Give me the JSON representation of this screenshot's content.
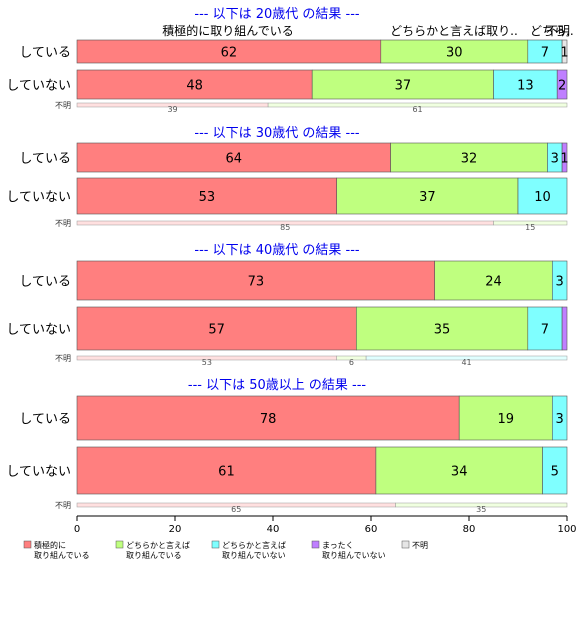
{
  "chart_data": {
    "type": "bar",
    "orientation": "horizontal",
    "stacked": true,
    "xlim": [
      0,
      100
    ],
    "x_ticks": [
      "0",
      "20",
      "40",
      "60",
      "80",
      "100"
    ],
    "category_labels": [
      "積極的に取り組んでいる",
      "どちらかと言えば取り..",
      "どちら..",
      "不明"
    ],
    "series": [
      {
        "name": "積極的に\n取り組んでいる",
        "color": "#ff7f7f"
      },
      {
        "name": "どちらかと言えば\n取り組んでいる",
        "color": "#bfff7f"
      },
      {
        "name": "どちらかと言えば\n取り組んでいない",
        "color": "#7fffff"
      },
      {
        "name": "まったく\n取り組んでいない",
        "color": "#bf7fff"
      },
      {
        "name": "不明",
        "color": "#e6e6e6"
      }
    ],
    "panels": [
      {
        "title": "--- 以下は 20歳代 の結果 ---",
        "rows": [
          {
            "label": "している",
            "values": [
              62,
              30,
              7,
              0,
              1
            ],
            "labels": [
              "62",
              "30",
              "7",
              "",
              "1"
            ]
          },
          {
            "label": "していない",
            "values": [
              48,
              37,
              13,
              2,
              0
            ],
            "labels": [
              "48",
              "37",
              "13",
              "2",
              ""
            ]
          }
        ],
        "unknown": {
          "label": "不明",
          "values": [
            39,
            61
          ],
          "labels": [
            "39",
            "61"
          ]
        }
      },
      {
        "title": "--- 以下は 30歳代 の結果 ---",
        "rows": [
          {
            "label": "している",
            "values": [
              64,
              32,
              3,
              1,
              0
            ],
            "labels": [
              "64",
              "32",
              "3",
              "1",
              ""
            ]
          },
          {
            "label": "していない",
            "values": [
              53,
              37,
              10,
              0,
              0
            ],
            "labels": [
              "53",
              "37",
              "10",
              "",
              ""
            ]
          }
        ],
        "unknown": {
          "label": "不明",
          "values": [
            85,
            15
          ],
          "labels": [
            "85",
            "15"
          ]
        }
      },
      {
        "title": "--- 以下は 40歳代 の結果 ---",
        "rows": [
          {
            "label": "している",
            "values": [
              73,
              24,
              3,
              0,
              0
            ],
            "labels": [
              "73",
              "24",
              "3",
              "",
              ""
            ]
          },
          {
            "label": "していない",
            "values": [
              57,
              35,
              7,
              1,
              0
            ],
            "labels": [
              "57",
              "35",
              "7",
              "",
              ""
            ]
          }
        ],
        "unknown": {
          "label": "不明",
          "values": [
            53,
            6,
            41
          ],
          "labels": [
            "53",
            "6",
            "41"
          ]
        }
      },
      {
        "title": "--- 以下は 50歳以上 の結果 ---",
        "rows": [
          {
            "label": "している",
            "values": [
              78,
              19,
              3,
              0,
              0
            ],
            "labels": [
              "78",
              "19",
              "3",
              "",
              ""
            ]
          },
          {
            "label": "していない",
            "values": [
              61,
              34,
              5,
              0,
              0
            ],
            "labels": [
              "61",
              "34",
              "5",
              "",
              ""
            ]
          }
        ],
        "unknown": {
          "label": "不明",
          "values": [
            65,
            35
          ],
          "labels": [
            "65",
            "35"
          ]
        }
      }
    ]
  }
}
